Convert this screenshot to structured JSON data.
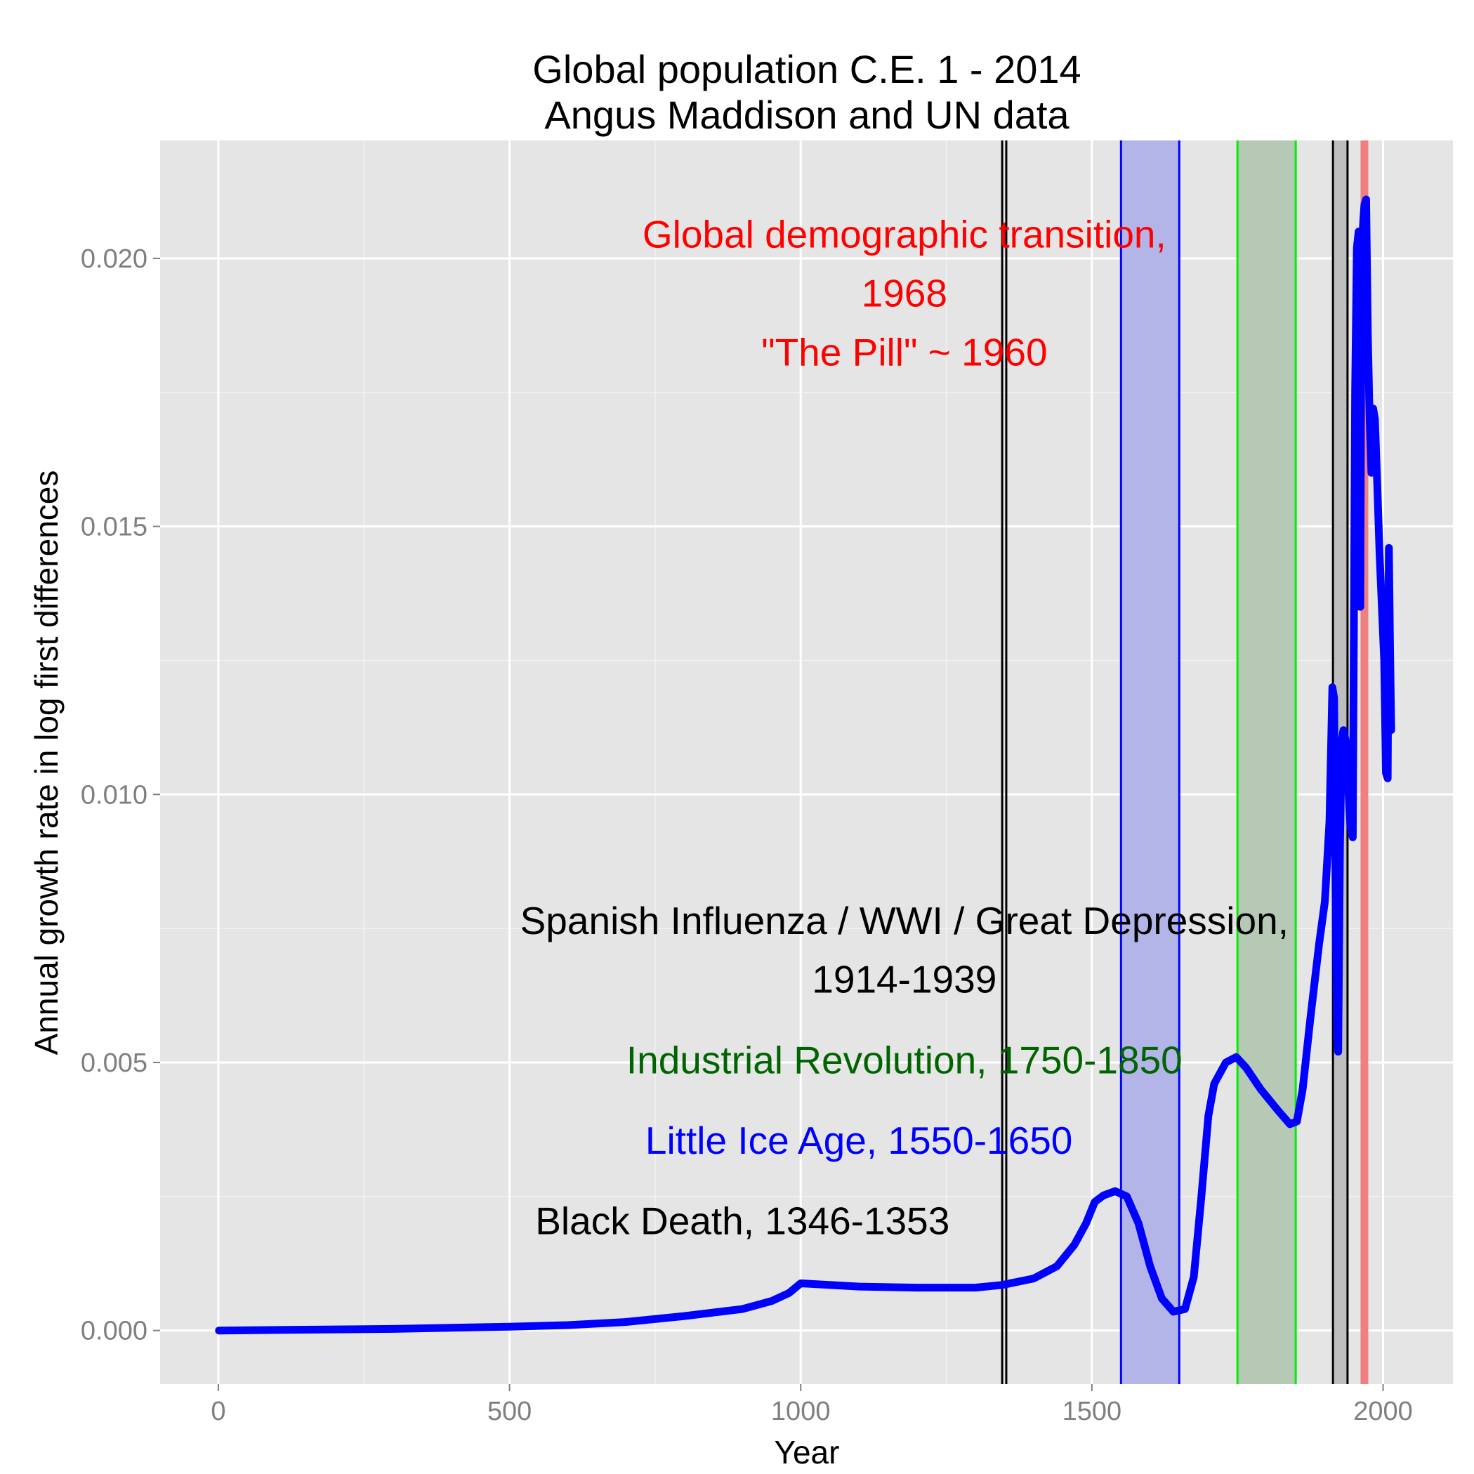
{
  "chart_data": {
    "type": "line",
    "title": "Global population C.E. 1 - 2014",
    "subtitle": "Angus Maddison and UN data",
    "xlabel": "Year",
    "ylabel": "Annual growth rate in log first differences",
    "xlim": [
      -100,
      2120
    ],
    "ylim": [
      -0.001,
      0.0222
    ],
    "xticks": [
      0,
      500,
      1000,
      1500,
      2000
    ],
    "yticks": [
      0.0,
      0.005,
      0.01,
      0.015,
      0.02
    ],
    "xtick_labels": [
      "0",
      "500",
      "1000",
      "1500",
      "2000"
    ],
    "ytick_labels": [
      "0.000",
      "0.005",
      "0.010",
      "0.015",
      "0.020"
    ],
    "grid": true,
    "series": [
      {
        "name": "Annual growth rate",
        "color": "#0000ff",
        "points": [
          [
            1,
            0.0
          ],
          [
            100,
            1e-05
          ],
          [
            200,
            2e-05
          ],
          [
            300,
            3e-05
          ],
          [
            400,
            5e-05
          ],
          [
            500,
            7e-05
          ],
          [
            600,
            0.0001
          ],
          [
            700,
            0.00016
          ],
          [
            800,
            0.00027
          ],
          [
            900,
            0.0004
          ],
          [
            950,
            0.00055
          ],
          [
            980,
            0.0007
          ],
          [
            1000,
            0.00088
          ],
          [
            1100,
            0.00082
          ],
          [
            1200,
            0.0008
          ],
          [
            1300,
            0.0008
          ],
          [
            1346,
            0.00085
          ],
          [
            1400,
            0.00097
          ],
          [
            1440,
            0.0012
          ],
          [
            1470,
            0.0016
          ],
          [
            1490,
            0.002
          ],
          [
            1505,
            0.0024
          ],
          [
            1520,
            0.00252
          ],
          [
            1540,
            0.0026
          ],
          [
            1560,
            0.0025
          ],
          [
            1580,
            0.002
          ],
          [
            1600,
            0.0012
          ],
          [
            1620,
            0.0006
          ],
          [
            1640,
            0.00035
          ],
          [
            1660,
            0.0004
          ],
          [
            1675,
            0.001
          ],
          [
            1688,
            0.0025
          ],
          [
            1700,
            0.004
          ],
          [
            1710,
            0.0046
          ],
          [
            1730,
            0.005
          ],
          [
            1748,
            0.0051
          ],
          [
            1765,
            0.0049
          ],
          [
            1790,
            0.0045
          ],
          [
            1820,
            0.0041
          ],
          [
            1840,
            0.00385
          ],
          [
            1852,
            0.0039
          ],
          [
            1862,
            0.0045
          ],
          [
            1875,
            0.0058
          ],
          [
            1890,
            0.0072
          ],
          [
            1900,
            0.008
          ],
          [
            1908,
            0.0095
          ],
          [
            1913,
            0.012
          ],
          [
            1916,
            0.0118
          ],
          [
            1919,
            0.0075
          ],
          [
            1921,
            0.0055
          ],
          [
            1923,
            0.0052
          ],
          [
            1926,
            0.009
          ],
          [
            1929,
            0.011
          ],
          [
            1932,
            0.0112
          ],
          [
            1936,
            0.011
          ],
          [
            1940,
            0.0102
          ],
          [
            1944,
            0.0094
          ],
          [
            1948,
            0.0092
          ],
          [
            1952,
            0.0175
          ],
          [
            1955,
            0.0202
          ],
          [
            1958,
            0.0205
          ],
          [
            1961,
            0.0135
          ],
          [
            1963,
            0.02
          ],
          [
            1966,
            0.0207
          ],
          [
            1968,
            0.021
          ],
          [
            1971,
            0.0211
          ],
          [
            1974,
            0.0185
          ],
          [
            1977,
            0.017
          ],
          [
            1980,
            0.016
          ],
          [
            1983,
            0.0172
          ],
          [
            1986,
            0.017
          ],
          [
            1990,
            0.0158
          ],
          [
            1994,
            0.0145
          ],
          [
            1998,
            0.0135
          ],
          [
            2002,
            0.0125
          ],
          [
            2005,
            0.0104
          ],
          [
            2008,
            0.0103
          ],
          [
            2010,
            0.0146
          ],
          [
            2012,
            0.0128
          ],
          [
            2014,
            0.0112
          ]
        ]
      }
    ],
    "bands": [
      {
        "name": "Little Ice Age",
        "start": 1550,
        "end": 1650,
        "fill": "#b3b5e8",
        "edge": "#0000ff"
      },
      {
        "name": "Industrial Revolution",
        "start": 1750,
        "end": 1850,
        "fill": "#b5c9b5",
        "edge": "#00ee00"
      },
      {
        "name": "Spanish Influenza / WWI / Great Depression",
        "start": 1914,
        "end": 1939,
        "fill": "#bebebe",
        "edge": "#000000"
      }
    ],
    "vlines": [
      {
        "name": "Black Death start",
        "x": 1346,
        "color": "#000000"
      },
      {
        "name": "Black Death end",
        "x": 1353,
        "color": "#000000"
      },
      {
        "name": "Global demographic transition",
        "x": 1968,
        "color": "#f08080"
      }
    ],
    "annotations": [
      {
        "text": "Global demographic transition,",
        "x": 1178,
        "y": 0.0202,
        "color": "#ff0000"
      },
      {
        "text": "1968",
        "x": 1178,
        "y": 0.0191,
        "color": "#ff0000"
      },
      {
        "text": "\"The Pill\" ~ 1960",
        "x": 1178,
        "y": 0.018,
        "color": "#ff0000"
      },
      {
        "text": "Spanish Influenza / WWI / Great Depression,",
        "x": 1178,
        "y": 0.0074,
        "color": "#000000"
      },
      {
        "text": "1914-1939",
        "x": 1178,
        "y": 0.0063,
        "color": "#000000"
      },
      {
        "text": "Industrial Revolution, 1750-1850",
        "x": 1178,
        "y": 0.0048,
        "color": "#006400"
      },
      {
        "text": "Little Ice Age, 1550-1650",
        "x": 1100,
        "y": 0.0033,
        "color": "#0000ff"
      },
      {
        "text": "Black Death, 1346-1353",
        "x": 900,
        "y": 0.0018,
        "color": "#000000"
      }
    ]
  }
}
